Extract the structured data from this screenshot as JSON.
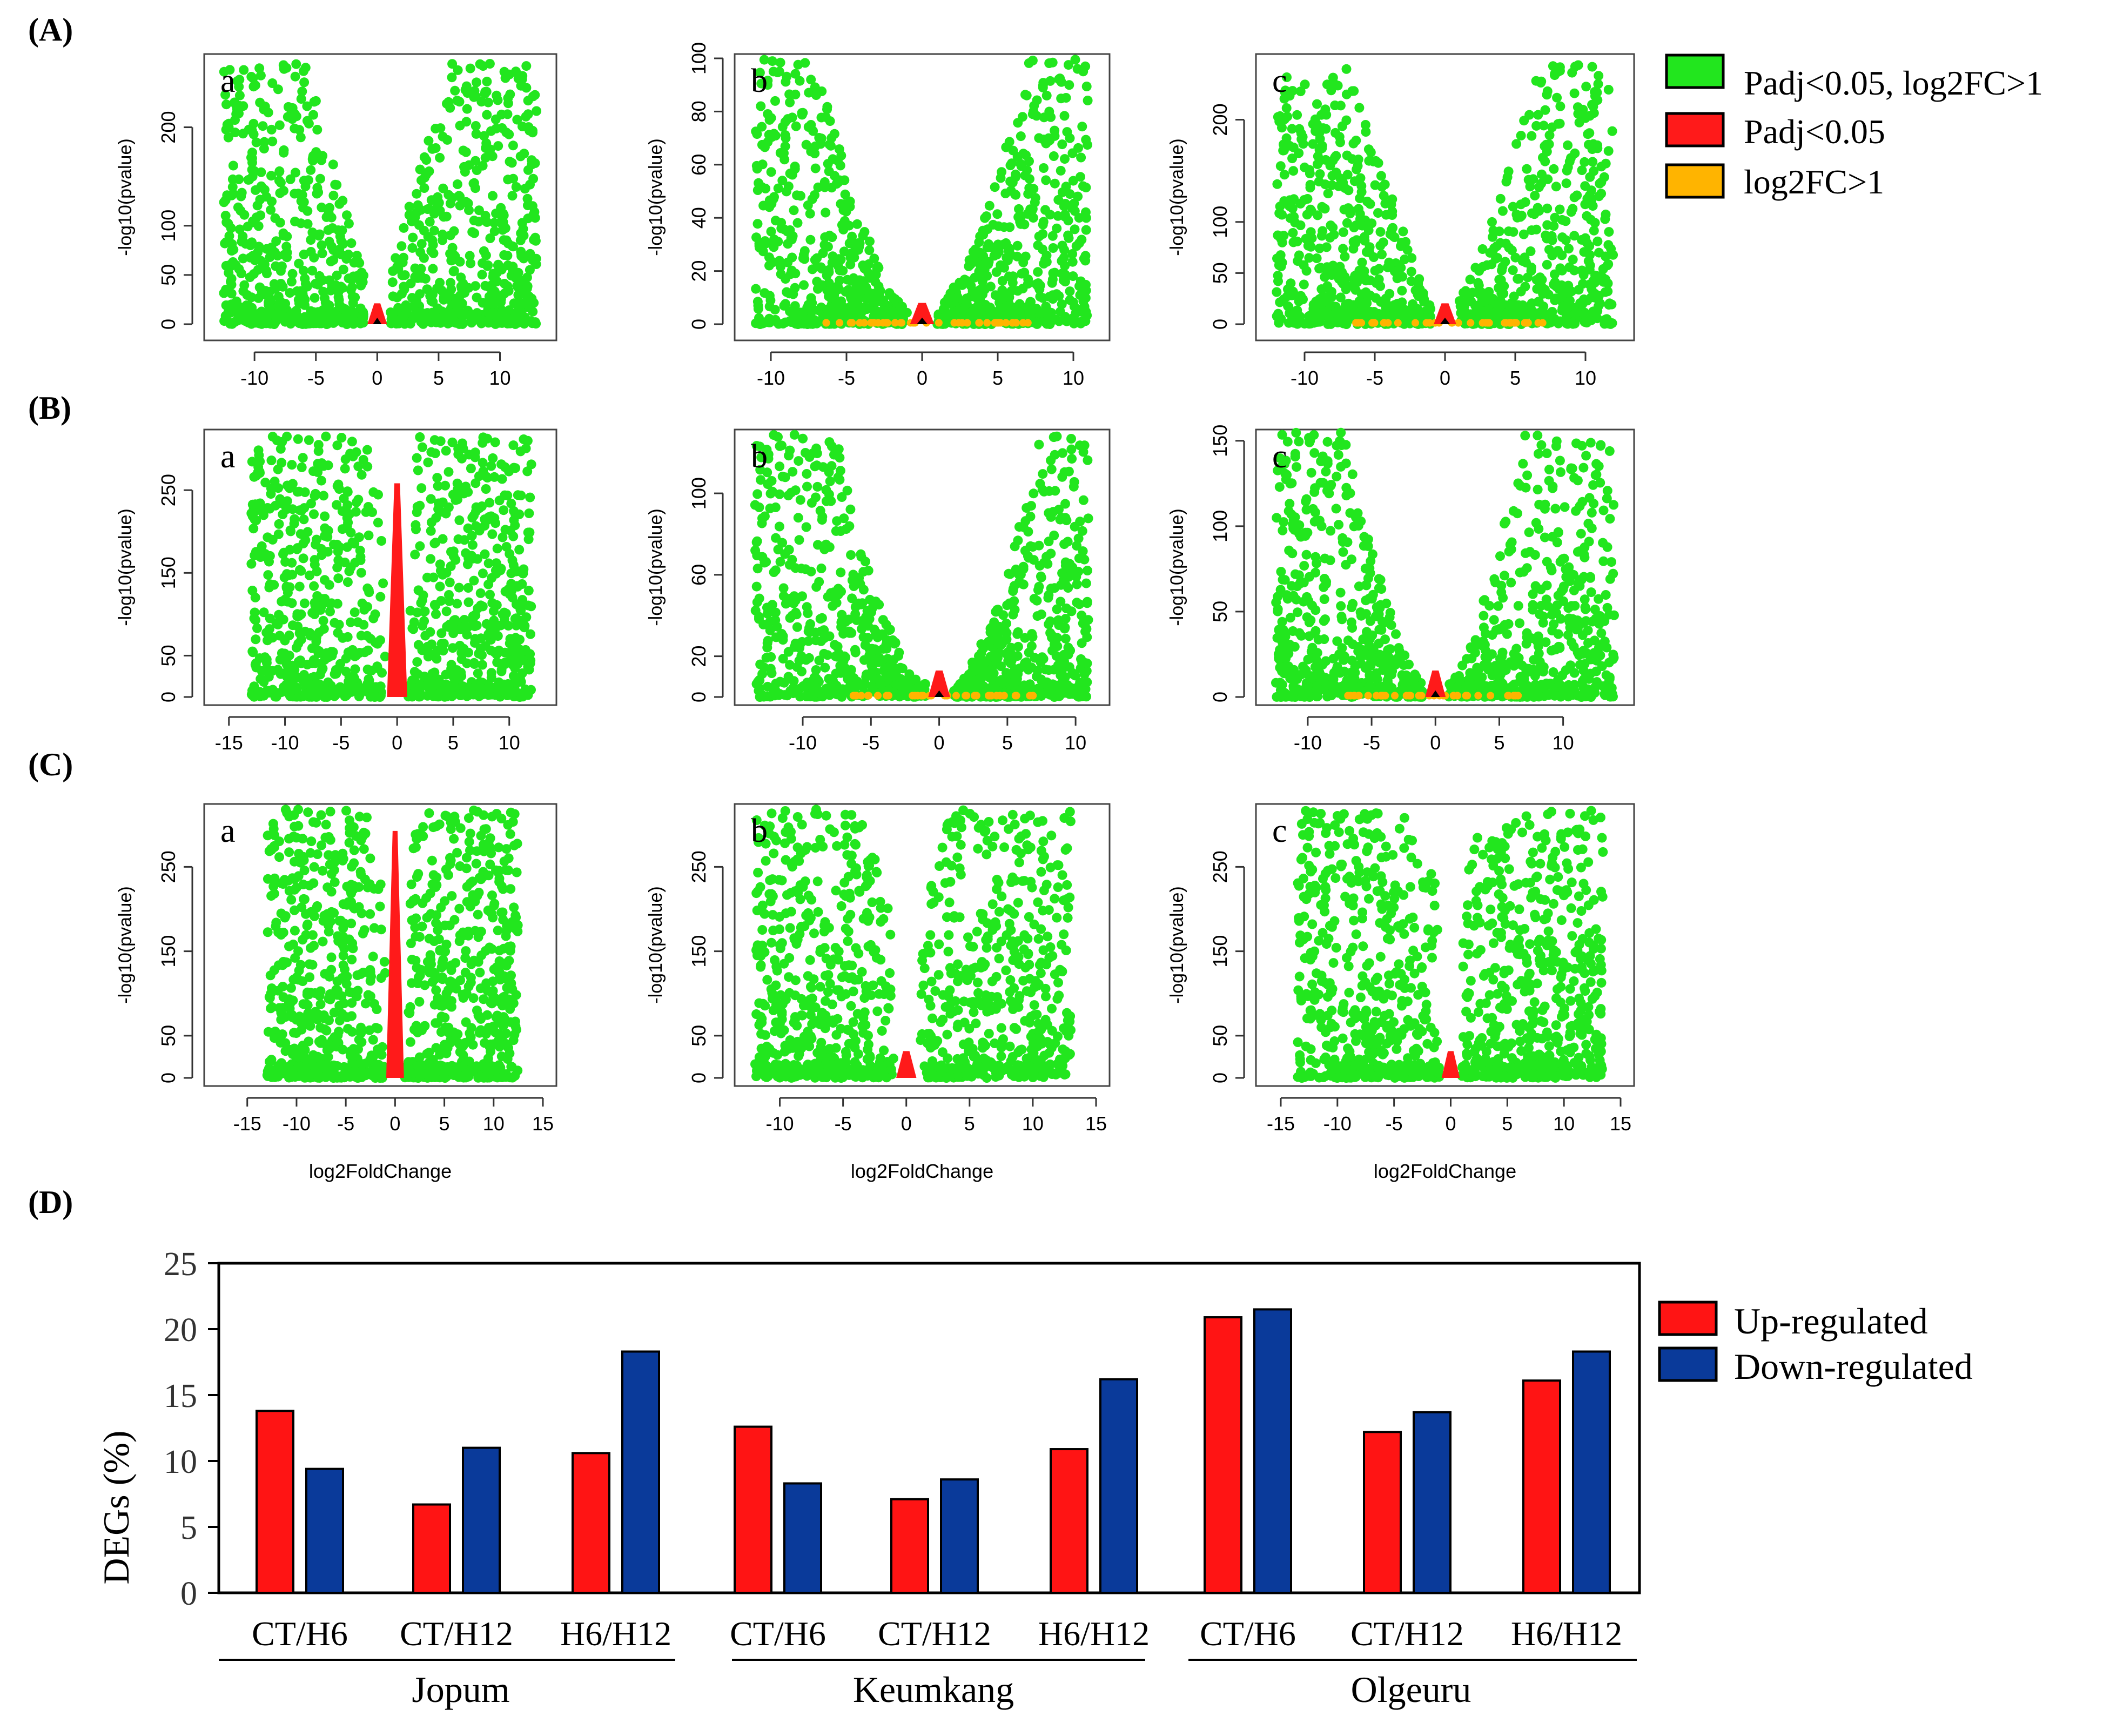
{
  "figure": {
    "row_labels": [
      "(A)",
      "(B)",
      "(C)",
      "(D)"
    ]
  },
  "colors": {
    "green": "#22e61e",
    "red": "#ff1a1a",
    "orange": "#ffb400",
    "black": "#000000",
    "up": "#ff1414",
    "down": "#0a3a9a"
  },
  "volcano_legend": {
    "entries": [
      {
        "label": "Padj<0.05, log2FC>1",
        "color": "#22e61e"
      },
      {
        "label": "Padj<0.05",
        "color": "#ff1a1a"
      },
      {
        "label": "log2FC>1",
        "color": "#ffb400"
      }
    ]
  },
  "chart_data": [
    {
      "type": "scatter",
      "id": "A-a",
      "panel_letter": "a",
      "xlabel": "",
      "ylabel": "-log10(pvalue)",
      "xlim": [
        -13,
        13.5
      ],
      "ylim": [
        0,
        270
      ],
      "xticks": [
        -10,
        -5,
        0,
        5,
        10
      ],
      "yticks": [
        0,
        50,
        100,
        200
      ],
      "shape": {
        "xmin": -12.5,
        "xmax": 13,
        "ymax": 265,
        "width": 2.6,
        "steep": 1.0
      }
    },
    {
      "type": "scatter",
      "id": "A-b",
      "panel_letter": "b",
      "xlabel": "",
      "ylabel": "-log10(pvalue)",
      "xlim": [
        -11.5,
        11.5
      ],
      "ylim": [
        0,
        100
      ],
      "xticks": [
        -10,
        -5,
        0,
        5,
        10
      ],
      "yticks": [
        0,
        20,
        40,
        60,
        80,
        100
      ],
      "shape": {
        "xmin": -11,
        "xmax": 11,
        "ymax": 100,
        "width": 3.2,
        "steep": 1.6
      }
    },
    {
      "type": "scatter",
      "id": "A-c",
      "panel_letter": "c",
      "xlabel": "",
      "ylabel": "-log10(pvalue)",
      "xlim": [
        -12.5,
        12.5
      ],
      "ylim": [
        0,
        260
      ],
      "xticks": [
        -10,
        -5,
        0,
        5,
        10
      ],
      "yticks": [
        0,
        50,
        100,
        200
      ],
      "shape": {
        "xmin": -12,
        "xmax": 12,
        "ymax": 255,
        "width": 3.0,
        "steep": 1.3
      }
    },
    {
      "type": "scatter",
      "id": "B-a",
      "panel_letter": "a",
      "xlabel": "",
      "ylabel": "-log10(pvalue)",
      "xlim": [
        -16,
        13
      ],
      "ylim": [
        0,
        320
      ],
      "xticks": [
        -15,
        -10,
        -5,
        0,
        5,
        10
      ],
      "yticks": [
        0,
        50,
        150,
        250
      ],
      "shape": {
        "xmin": -13,
        "xmax": 12,
        "ymax": 315,
        "width": 0.9,
        "steep": 0.5
      }
    },
    {
      "type": "scatter",
      "id": "B-b",
      "panel_letter": "b",
      "xlabel": "",
      "ylabel": "-log10(pvalue)",
      "xlim": [
        -14,
        11.5
      ],
      "ylim": [
        0,
        130
      ],
      "xticks": [
        -10,
        -5,
        0,
        5,
        10
      ],
      "yticks": [
        0,
        20,
        60,
        100
      ],
      "shape": {
        "xmin": -13.5,
        "xmax": 11,
        "ymax": 130,
        "width": 3.4,
        "steep": 1.8
      }
    },
    {
      "type": "scatter",
      "id": "B-c",
      "panel_letter": "c",
      "xlabel": "",
      "ylabel": "-log10(pvalue)",
      "xlim": [
        -13,
        14.5
      ],
      "ylim": [
        0,
        155
      ],
      "xticks": [
        -10,
        -5,
        0,
        5,
        10
      ],
      "yticks": [
        0,
        50,
        100,
        150
      ],
      "shape": {
        "xmin": -12.5,
        "xmax": 14,
        "ymax": 155,
        "width": 3.2,
        "steep": 1.6
      }
    },
    {
      "type": "scatter",
      "id": "C-a",
      "panel_letter": "a",
      "xlabel": "log2FoldChange",
      "ylabel": "-log10(pvalue)",
      "xlim": [
        -18,
        15
      ],
      "ylim": [
        0,
        320
      ],
      "xticks": [
        -15,
        -10,
        -5,
        0,
        5,
        10,
        15
      ],
      "yticks": [
        0,
        50,
        150,
        250
      ],
      "shape": {
        "xmin": -13,
        "xmax": 12.5,
        "ymax": 318,
        "width": 1.2,
        "steep": 0.4
      }
    },
    {
      "type": "scatter",
      "id": "C-b",
      "panel_letter": "b",
      "xlabel": "log2FoldChange",
      "ylabel": "-log10(pvalue)",
      "xlim": [
        -12.5,
        15
      ],
      "ylim": [
        0,
        320
      ],
      "xticks": [
        -10,
        -5,
        0,
        5,
        10,
        15
      ],
      "yticks": [
        0,
        50,
        150,
        250
      ],
      "shape": {
        "xmin": -12,
        "xmax": 13,
        "ymax": 318,
        "width": 1.6,
        "steep": 0.5
      }
    },
    {
      "type": "scatter",
      "id": "C-c",
      "panel_letter": "c",
      "xlabel": "log2FoldChange",
      "ylabel": "-log10(pvalue)",
      "xlim": [
        -16,
        15
      ],
      "ylim": [
        0,
        320
      ],
      "xticks": [
        -15,
        -10,
        -5,
        0,
        5,
        10,
        15
      ],
      "yticks": [
        0,
        50,
        150,
        250
      ],
      "shape": {
        "xmin": -13.5,
        "xmax": 13.5,
        "ymax": 318,
        "width": 1.3,
        "steep": 0.4
      }
    },
    {
      "type": "bar",
      "id": "D",
      "ylabel": "DEGs (%)",
      "ylim": [
        0,
        25
      ],
      "yticks": [
        0,
        5,
        10,
        15,
        20,
        25
      ],
      "categories": [
        "CT/H6",
        "CT/H12",
        "H6/H12",
        "CT/H6",
        "CT/H12",
        "H6/H12",
        "CT/H6",
        "CT/H12",
        "H6/H12"
      ],
      "groups": [
        {
          "name": "Jopum",
          "categories": [
            "CT/H6",
            "CT/H12",
            "H6/H12"
          ]
        },
        {
          "name": "Keumkang",
          "categories": [
            "CT/H6",
            "CT/H12",
            "H6/H12"
          ]
        },
        {
          "name": "Olgeuru",
          "categories": [
            "CT/H6",
            "CT/H12",
            "H6/H12"
          ]
        }
      ],
      "series": [
        {
          "name": "Up-regulated",
          "color": "#ff1414",
          "values": [
            13.8,
            6.7,
            10.6,
            12.6,
            7.1,
            10.9,
            20.9,
            12.2,
            16.1
          ]
        },
        {
          "name": "Down-regulated",
          "color": "#0a3a9a",
          "values": [
            9.4,
            11.0,
            18.3,
            8.3,
            8.6,
            16.2,
            21.5,
            13.7,
            18.3
          ]
        }
      ]
    }
  ]
}
